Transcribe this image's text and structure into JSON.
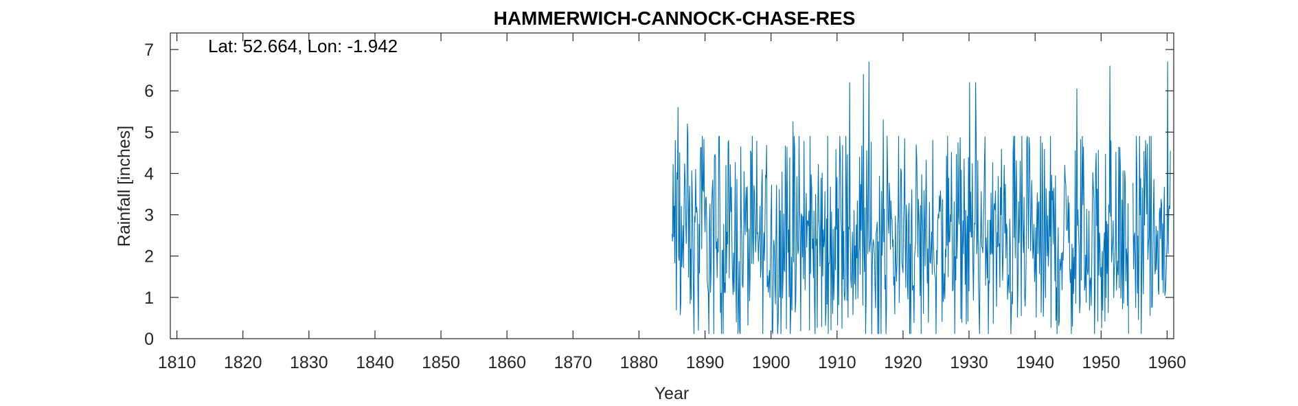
{
  "chart_data": {
    "type": "line",
    "title": "HAMMERWICH-CANNOCK-CHASE-RES",
    "xlabel": "Year",
    "ylabel": "Rainfall [inches]",
    "annotation": "Lat: 52.664, Lon: -1.942",
    "xlim": [
      1809,
      1961
    ],
    "ylim": [
      0,
      7.4
    ],
    "xticks": [
      1810,
      1820,
      1830,
      1840,
      1850,
      1860,
      1870,
      1880,
      1890,
      1900,
      1910,
      1920,
      1930,
      1940,
      1950,
      1960
    ],
    "yticks": [
      0,
      1,
      2,
      3,
      4,
      5,
      6,
      7
    ],
    "grid": false,
    "line_color": "#0072BD",
    "series": [
      {
        "start_year": 1885,
        "frequency": "monthly",
        "peaks": [
          {
            "x": 1885.5,
            "y": 4.8
          },
          {
            "x": 1885.9,
            "y": 5.6
          },
          {
            "x": 1887.3,
            "y": 5.2
          },
          {
            "x": 1903.3,
            "y": 5.25
          },
          {
            "x": 1911.9,
            "y": 6.2
          },
          {
            "x": 1914.0,
            "y": 6.4
          },
          {
            "x": 1914.8,
            "y": 6.7
          },
          {
            "x": 1917.0,
            "y": 5.3
          },
          {
            "x": 1930.1,
            "y": 6.2
          },
          {
            "x": 1931.0,
            "y": 6.2
          },
          {
            "x": 1946.3,
            "y": 6.05
          },
          {
            "x": 1951.3,
            "y": 6.6
          },
          {
            "x": 1960.1,
            "y": 6.7
          }
        ],
        "gaps": [
          [
            1954.2,
            1954.8
          ]
        ],
        "typical_range": [
          0.5,
          4.5
        ],
        "mean": 2.3
      }
    ]
  }
}
